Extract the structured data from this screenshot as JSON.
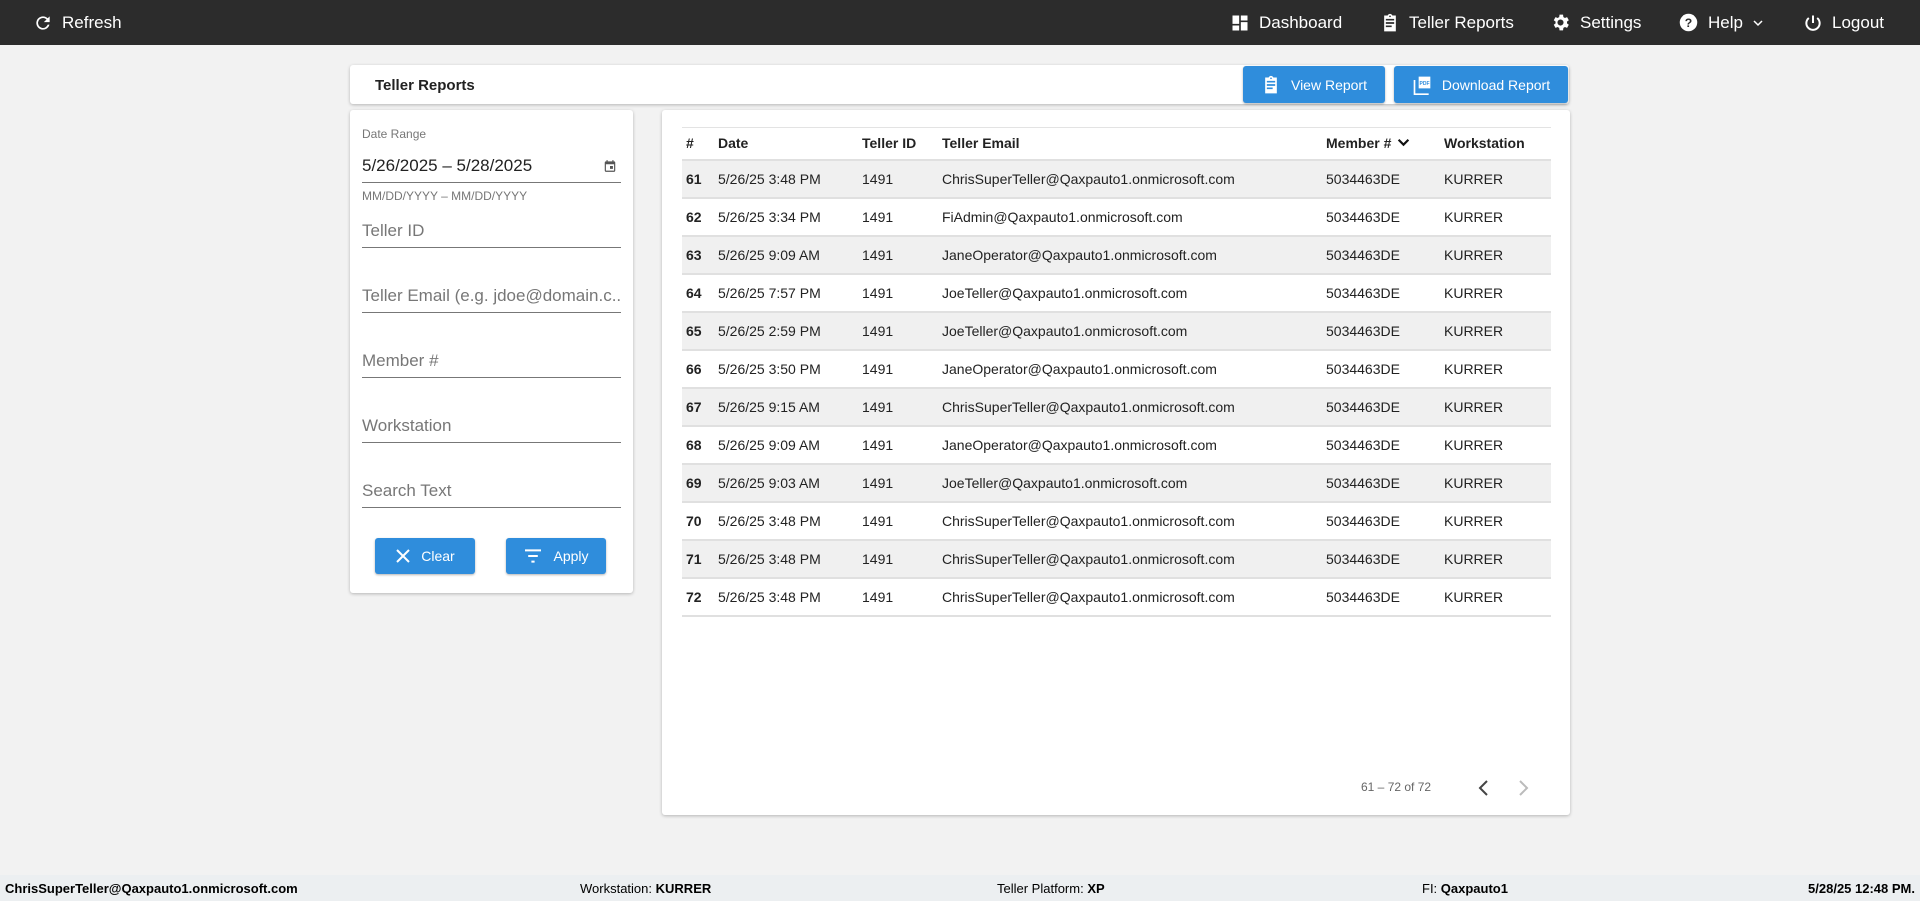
{
  "nav": {
    "refresh": "Refresh",
    "dashboard": "Dashboard",
    "teller_reports": "Teller Reports",
    "settings": "Settings",
    "help": "Help",
    "logout": "Logout"
  },
  "header": {
    "title": "Teller Reports",
    "view_report": "View Report",
    "download_report": "Download Report"
  },
  "filters": {
    "date_label": "Date Range",
    "date_value": "5/26/2025 – 5/28/2025",
    "date_hint": "MM/DD/YYYY – MM/DD/YYYY",
    "teller_id": "Teller ID",
    "teller_email": "Teller Email (e.g. jdoe@domain.c...",
    "member": "Member #",
    "workstation": "Workstation",
    "search": "Search Text",
    "clear": "Clear",
    "apply": "Apply"
  },
  "table": {
    "columns": [
      "#",
      "Date",
      "Teller ID",
      "Teller Email",
      "Member #",
      "Workstation"
    ],
    "rows": [
      [
        "61",
        "5/26/25 3:48 PM",
        "1491",
        "ChrisSuperTeller@Qaxpauto1.onmicrosoft.com",
        "5034463DE",
        "KURRER"
      ],
      [
        "62",
        "5/26/25 3:34 PM",
        "1491",
        "FiAdmin@Qaxpauto1.onmicrosoft.com",
        "5034463DE",
        "KURRER"
      ],
      [
        "63",
        "5/26/25 9:09 AM",
        "1491",
        "JaneOperator@Qaxpauto1.onmicrosoft.com",
        "5034463DE",
        "KURRER"
      ],
      [
        "64",
        "5/26/25 7:57 PM",
        "1491",
        "JoeTeller@Qaxpauto1.onmicrosoft.com",
        "5034463DE",
        "KURRER"
      ],
      [
        "65",
        "5/26/25 2:59 PM",
        "1491",
        "JoeTeller@Qaxpauto1.onmicrosoft.com",
        "5034463DE",
        "KURRER"
      ],
      [
        "66",
        "5/26/25 3:50 PM",
        "1491",
        "JaneOperator@Qaxpauto1.onmicrosoft.com",
        "5034463DE",
        "KURRER"
      ],
      [
        "67",
        "5/26/25 9:15 AM",
        "1491",
        "ChrisSuperTeller@Qaxpauto1.onmicrosoft.com",
        "5034463DE",
        "KURRER"
      ],
      [
        "68",
        "5/26/25 9:09 AM",
        "1491",
        "JaneOperator@Qaxpauto1.onmicrosoft.com",
        "5034463DE",
        "KURRER"
      ],
      [
        "69",
        "5/26/25 9:03 AM",
        "1491",
        "JoeTeller@Qaxpauto1.onmicrosoft.com",
        "5034463DE",
        "KURRER"
      ],
      [
        "70",
        "5/26/25 3:48 PM",
        "1491",
        "ChrisSuperTeller@Qaxpauto1.onmicrosoft.com",
        "5034463DE",
        "KURRER"
      ],
      [
        "71",
        "5/26/25 3:48 PM",
        "1491",
        "ChrisSuperTeller@Qaxpauto1.onmicrosoft.com",
        "5034463DE",
        "KURRER"
      ],
      [
        "72",
        "5/26/25 3:48 PM",
        "1491",
        "ChrisSuperTeller@Qaxpauto1.onmicrosoft.com",
        "5034463DE",
        "KURRER"
      ]
    ],
    "sorted_column": "Member #",
    "sort_direction": "descending"
  },
  "pagination": {
    "range": "61 – 72 of 72"
  },
  "footer": {
    "user": "ChrisSuperTeller@Qaxpauto1.onmicrosoft.com",
    "workstation_label": "Workstation:",
    "workstation": "KURRER",
    "platform_label": "Teller Platform:",
    "platform": "XP",
    "fi_label": "FI:",
    "fi": "Qaxpauto1",
    "datetime": "5/28/25 12:48 PM."
  },
  "colors": {
    "accent": "#2f8ddc",
    "navbar": "#2c2c2c"
  }
}
